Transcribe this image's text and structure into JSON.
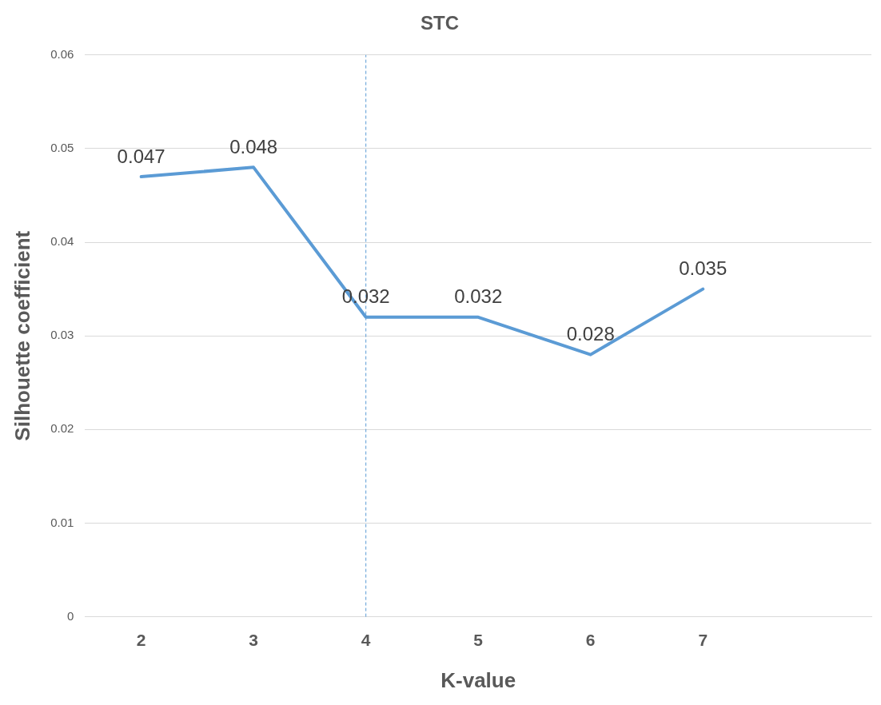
{
  "chart_data": {
    "type": "line",
    "title": "STC",
    "xlabel": "K-value",
    "ylabel": "Silhouette coefficient",
    "categories": [
      "2",
      "3",
      "4",
      "5",
      "6",
      "7",
      null
    ],
    "series": [
      {
        "color": "#5b9bd5",
        "values": [
          0.047,
          0.048,
          0.032,
          0.032,
          0.028,
          0.035,
          null
        ]
      }
    ],
    "ylim": [
      0,
      0.06
    ],
    "yticks": [
      0,
      0.01,
      0.02,
      0.03,
      0.04,
      0.05,
      0.06
    ],
    "grid": "y",
    "legend": false,
    "marker": "none",
    "line_style": "solid",
    "data_labels": true,
    "ref_lines": [
      {
        "axis": "x",
        "value": "4",
        "color": "#5b9bd5",
        "line_style": "dashed"
      }
    ]
  }
}
